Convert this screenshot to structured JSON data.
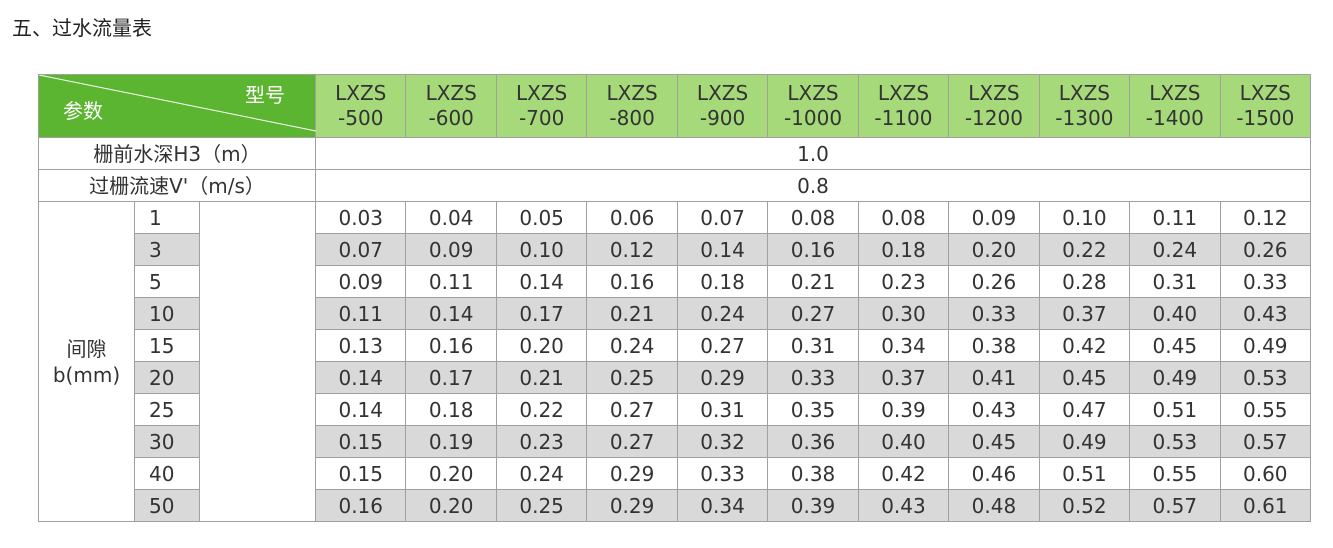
{
  "title": "五、过水流量表",
  "table": {
    "corner": {
      "model_label": "型号",
      "param_label": "参数"
    },
    "models": [
      [
        "LXZS",
        "-500"
      ],
      [
        "LXZS",
        "-600"
      ],
      [
        "LXZS",
        "-700"
      ],
      [
        "LXZS",
        "-800"
      ],
      [
        "LXZS",
        "-900"
      ],
      [
        "LXZS",
        "-1000"
      ],
      [
        "LXZS",
        "-1100"
      ],
      [
        "LXZS",
        "-1200"
      ],
      [
        "LXZS",
        "-1300"
      ],
      [
        "LXZS",
        "-1400"
      ],
      [
        "LXZS",
        "-1500"
      ]
    ],
    "common_rows": [
      {
        "label": "栅前水深H3（m）",
        "value": "1.0"
      },
      {
        "label": "过栅流速V'（m/s）",
        "value": "0.8"
      }
    ],
    "gap_label": [
      "间隙",
      "b(mm)"
    ],
    "gap_rows": [
      {
        "gap": "1",
        "values": [
          "0.03",
          "0.04",
          "0.05",
          "0.06",
          "0.07",
          "0.08",
          "0.08",
          "0.09",
          "0.10",
          "0.11",
          "0.12"
        ]
      },
      {
        "gap": "3",
        "values": [
          "0.07",
          "0.09",
          "0.10",
          "0.12",
          "0.14",
          "0.16",
          "0.18",
          "0.20",
          "0.22",
          "0.24",
          "0.26"
        ]
      },
      {
        "gap": "5",
        "values": [
          "0.09",
          "0.11",
          "0.14",
          "0.16",
          "0.18",
          "0.21",
          "0.23",
          "0.26",
          "0.28",
          "0.31",
          "0.33"
        ]
      },
      {
        "gap": "10",
        "values": [
          "0.11",
          "0.14",
          "0.17",
          "0.21",
          "0.24",
          "0.27",
          "0.30",
          "0.33",
          "0.37",
          "0.40",
          "0.43"
        ]
      },
      {
        "gap": "15",
        "values": [
          "0.13",
          "0.16",
          "0.20",
          "0.24",
          "0.27",
          "0.31",
          "0.34",
          "0.38",
          "0.42",
          "0.45",
          "0.49"
        ]
      },
      {
        "gap": "20",
        "values": [
          "0.14",
          "0.17",
          "0.21",
          "0.25",
          "0.29",
          "0.33",
          "0.37",
          "0.41",
          "0.45",
          "0.49",
          "0.53"
        ]
      },
      {
        "gap": "25",
        "values": [
          "0.14",
          "0.18",
          "0.22",
          "0.27",
          "0.31",
          "0.35",
          "0.39",
          "0.43",
          "0.47",
          "0.51",
          "0.55"
        ]
      },
      {
        "gap": "30",
        "values": [
          "0.15",
          "0.19",
          "0.23",
          "0.27",
          "0.32",
          "0.36",
          "0.40",
          "0.45",
          "0.49",
          "0.53",
          "0.57"
        ]
      },
      {
        "gap": "40",
        "values": [
          "0.15",
          "0.20",
          "0.24",
          "0.29",
          "0.33",
          "0.38",
          "0.42",
          "0.46",
          "0.51",
          "0.55",
          "0.60"
        ]
      },
      {
        "gap": "50",
        "values": [
          "0.16",
          "0.20",
          "0.25",
          "0.29",
          "0.34",
          "0.39",
          "0.43",
          "0.48",
          "0.52",
          "0.57",
          "0.61"
        ]
      }
    ]
  }
}
